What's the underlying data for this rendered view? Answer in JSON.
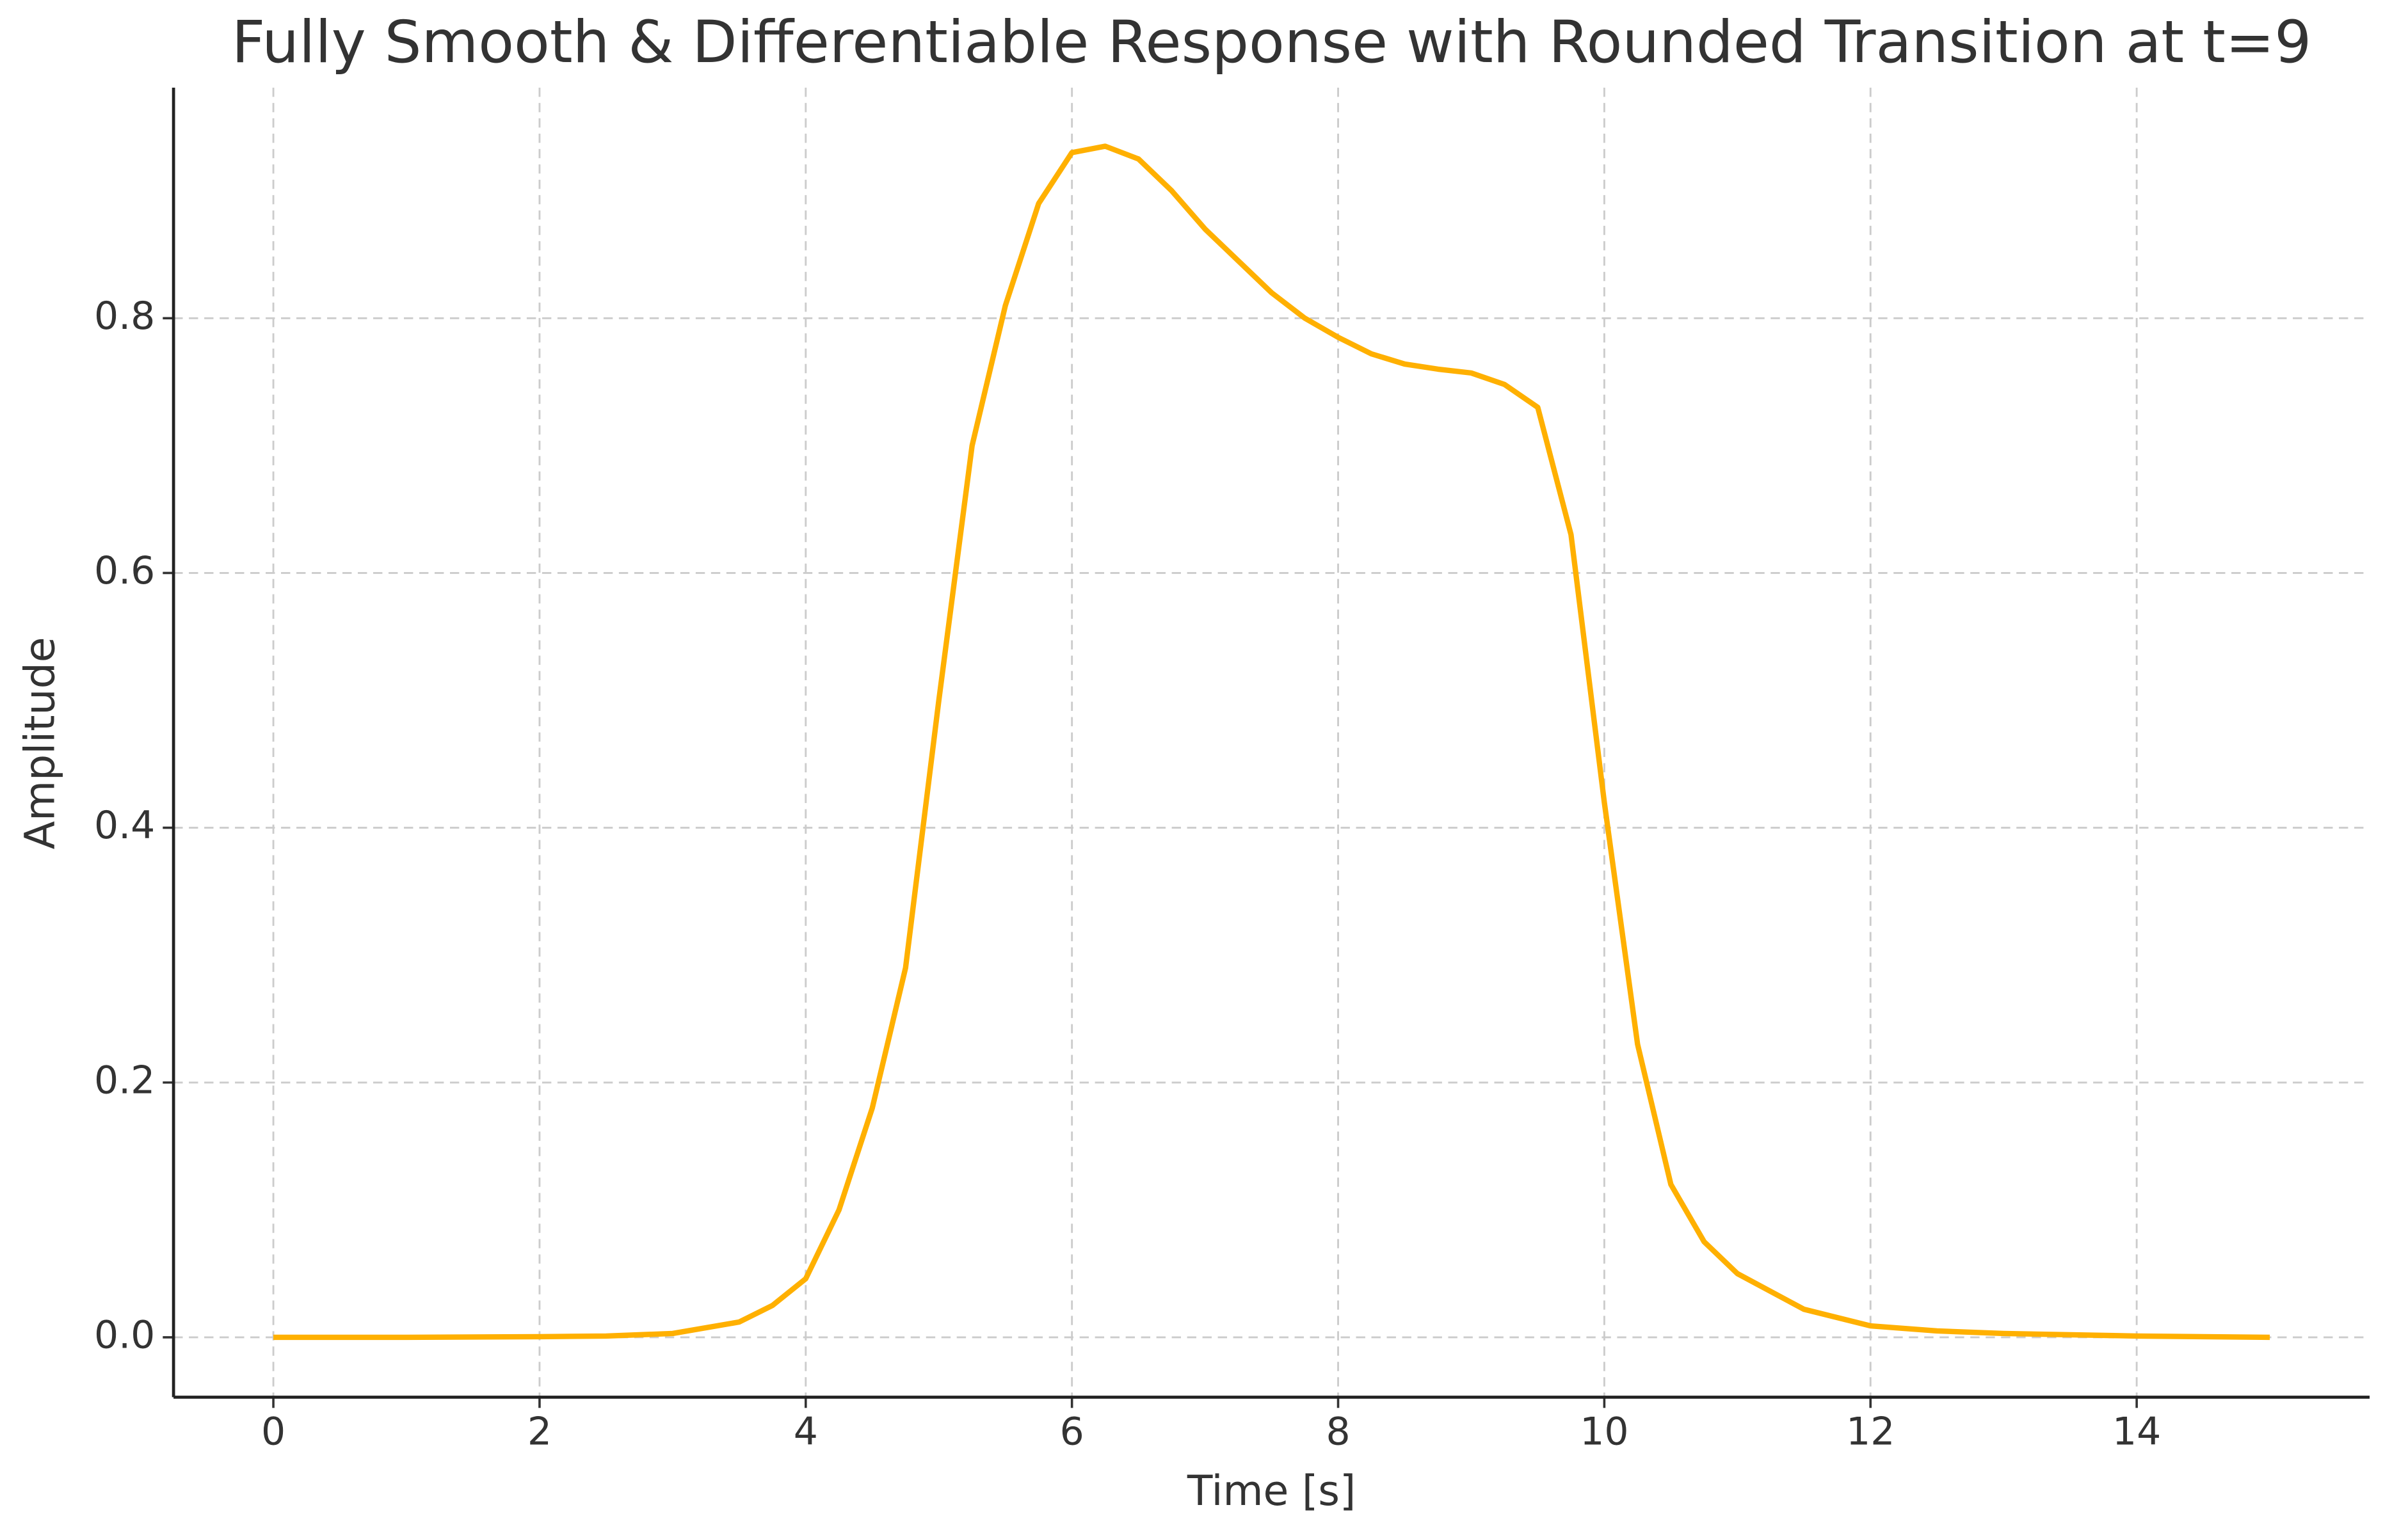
{
  "chart_data": {
    "type": "line",
    "title": "Fully Smooth & Differentiable Response with Rounded Transition at t=9",
    "x_label": "Time [s]",
    "y_label": "Amplitude",
    "x": [
      0,
      1,
      2,
      2.5,
      3,
      3.5,
      3.75,
      4,
      4.25,
      4.5,
      4.75,
      5,
      5.25,
      5.5,
      5.75,
      6,
      6.25,
      6.5,
      6.75,
      7,
      7.25,
      7.5,
      7.75,
      8,
      8.25,
      8.5,
      8.75,
      9,
      9.25,
      9.5,
      9.75,
      10,
      10.25,
      10.5,
      10.75,
      11,
      11.5,
      12,
      12.5,
      13,
      14,
      15
    ],
    "series": [
      {
        "name": "Amplitude",
        "color": "#ffb000",
        "values": [
          0,
          0,
          0.0005,
          0.001,
          0.003,
          0.012,
          0.025,
          0.046,
          0.1,
          0.18,
          0.29,
          0.5,
          0.7,
          0.81,
          0.89,
          0.93,
          0.935,
          0.925,
          0.9,
          0.87,
          0.845,
          0.82,
          0.8,
          0.785,
          0.772,
          0.764,
          0.76,
          0.757,
          0.748,
          0.73,
          0.63,
          0.42,
          0.23,
          0.12,
          0.075,
          0.05,
          0.022,
          0.009,
          0.005,
          0.003,
          0.001,
          0
        ]
      }
    ],
    "xlim": [
      -0.75,
      15.75
    ],
    "ylim": [
      -0.047,
      0.981
    ],
    "xticks": [
      0,
      2,
      4,
      6,
      8,
      10,
      12,
      14
    ],
    "yticks": [
      {
        "value": 0,
        "label": "0.0"
      },
      {
        "value": 0.2,
        "label": "0.2"
      },
      {
        "value": 0.4,
        "label": "0.4"
      },
      {
        "value": 0.6,
        "label": "0.6"
      },
      {
        "value": 0.8,
        "label": "0.8"
      }
    ],
    "grid": true
  }
}
